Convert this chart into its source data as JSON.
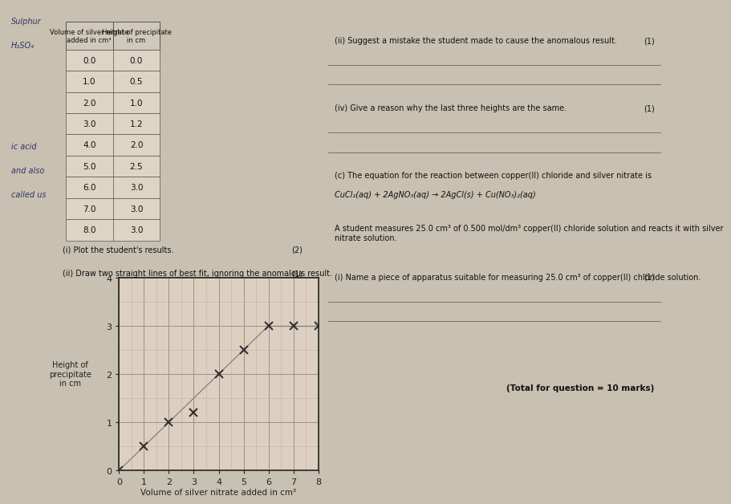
{
  "x_data": [
    0.0,
    1.0,
    2.0,
    3.0,
    4.0,
    5.0,
    6.0,
    7.0,
    8.0
  ],
  "y_data": [
    0.0,
    0.5,
    1.0,
    1.2,
    2.0,
    2.5,
    3.0,
    3.0,
    3.0
  ],
  "xlabel": "Volume of silver nitrate added in cm³",
  "ylabel": "Height of\nprecipitate\nin cm",
  "xlim": [
    0,
    8
  ],
  "ylim": [
    0,
    4
  ],
  "xticks": [
    0,
    1,
    2,
    3,
    4,
    5,
    6,
    7,
    8
  ],
  "yticks": [
    0,
    1,
    2,
    3,
    4
  ],
  "line1_x": [
    0.0,
    6.0
  ],
  "line1_y": [
    0.0,
    3.0
  ],
  "line2_x": [
    6.0,
    8.0
  ],
  "line2_y": [
    3.0,
    3.0
  ],
  "grid_minor_color": "#c0b0a8",
  "grid_major_color": "#a09080",
  "axis_color": "#222222",
  "line_color": "#808080",
  "marker_color": "#333333",
  "bg_color": "#ddd0c0",
  "figure_bg": "#b8b0a0",
  "page_bg": "#c8c0b0",
  "marker_size": 7,
  "marker_linewidth": 1.5,
  "line_linewidth": 0.9,
  "ylabel_fontsize": 7,
  "xlabel_fontsize": 7.5,
  "tick_fontsize": 8,
  "table_vol": [
    0.0,
    1.0,
    2.0,
    3.0,
    4.0,
    5.0,
    6.0,
    7.0,
    8.0
  ],
  "table_height": [
    0.0,
    0.5,
    1.0,
    1.2,
    2.0,
    2.5,
    3.0,
    3.0,
    3.0
  ],
  "table_header1": "Volume of silver nitrate\nadded in cm³",
  "table_header2": "Height of precipitate\nin cm",
  "text_ii": "(ii) Suggest a mistake the student made to cause the anomalous result.",
  "text_iv": "(iv) Give a reason why the last three heights are the same.",
  "text_c": "(c) The equation for the reaction between copper(II) chloride and silver nitrate is",
  "text_eq": "CuCl₂(aq) + 2AgNO₃(aq) → 2AgCl(s) + Cu(NO₃)₂(aq)",
  "text_student": "A student measures 25.0 cm³ of 0.500 mol/dm³ copper(II) chloride solution and reacts it with silver\nnitrate solution.",
  "text_i_name": "(i) Name a piece of apparatus suitable for measuring 25.0 cm³ of copper(II) chloride solution.",
  "text_total": "(Total for question = 10 marks)",
  "text_plot_i": "(i) Plot the student's results.",
  "text_plot_ii": "(ii) Draw two straight lines of best fit, ignoring the anomalous result.",
  "text_marks_2": "(2)",
  "text_marks_1a": "(1)",
  "text_marks_1b": "(1)",
  "text_marks_1c": "(1)",
  "text_marks_1d": "(1)"
}
